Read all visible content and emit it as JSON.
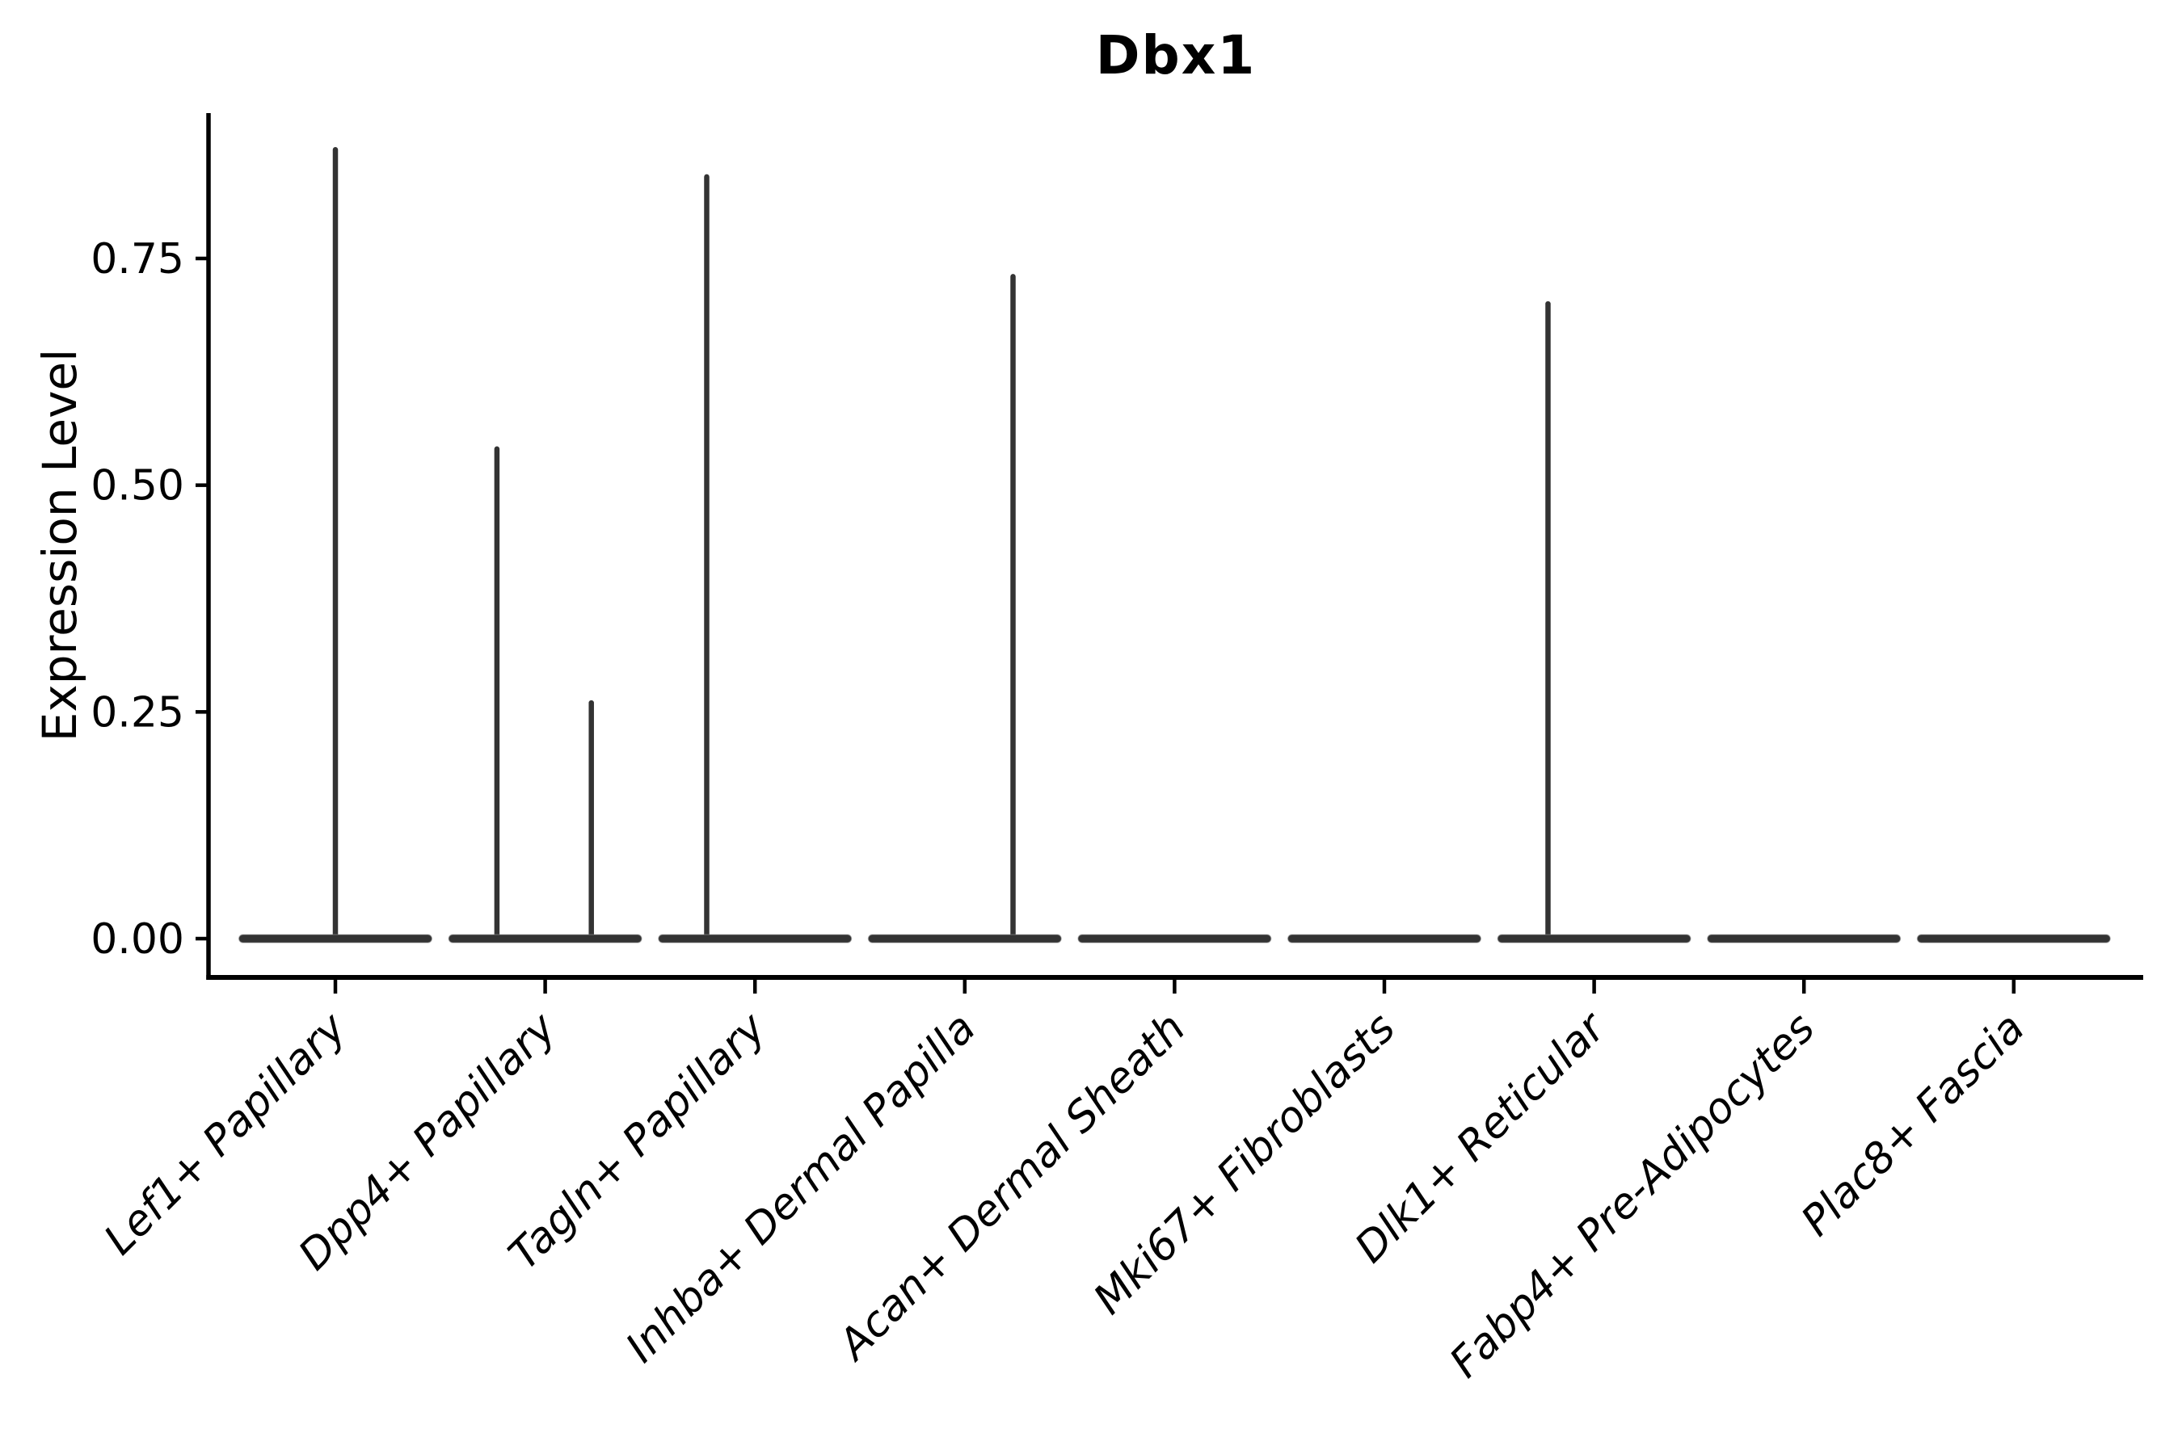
{
  "title": "Dbx1",
  "y_axis": {
    "label": "Expression Level",
    "tick_labels": [
      "0.00",
      "0.25",
      "0.50",
      "0.75"
    ],
    "tick_values": [
      0.0,
      0.25,
      0.5,
      0.75
    ]
  },
  "x_axis": {
    "label": "",
    "tick_labels": [
      "Lef1+ Papillary",
      "Dpp4+ Papillary",
      "Tagln+ Papillary",
      "Inhba+ Dermal Papilla",
      "Acan+ Dermal Sheath",
      "Mki67+ Fibroblasts",
      "Dlk1+ Reticular",
      "Fabp4+ Pre-Adipocytes",
      "Plac8+ Fascia"
    ]
  },
  "colors": {
    "background": "#ffffff",
    "axis": "#000000",
    "text": "#000000",
    "violin": "#333333"
  },
  "chart_data": {
    "type": "violin",
    "title": "Dbx1",
    "xlabel": "",
    "ylabel": "Expression Level",
    "ylim": [
      -0.04,
      0.91
    ],
    "yticks": [
      0.0,
      0.25,
      0.5,
      0.75
    ],
    "ytick_labels": [
      "0.00",
      "0.25",
      "0.50",
      "0.75"
    ],
    "grid": false,
    "legend": "none",
    "body_width": 0.92,
    "categories": [
      "Lef1+ Papillary",
      "Dpp4+ Papillary",
      "Tagln+ Papillary",
      "Inhba+ Dermal Papilla",
      "Acan+ Dermal Sheath",
      "Mki67+ Fibroblasts",
      "Dlk1+ Reticular",
      "Fabp4+ Pre-Adipocytes",
      "Plac8+ Fascia"
    ],
    "violins": [
      {
        "category": "Lef1+ Papillary",
        "baseline": 0.0,
        "spikes": [
          {
            "x_offset": 0.0,
            "max_expression": 0.87
          }
        ]
      },
      {
        "category": "Dpp4+ Papillary",
        "baseline": 0.0,
        "spikes": [
          {
            "x_offset": -0.23,
            "max_expression": 0.54
          },
          {
            "x_offset": 0.22,
            "max_expression": 0.26
          }
        ]
      },
      {
        "category": "Tagln+ Papillary",
        "baseline": 0.0,
        "spikes": [
          {
            "x_offset": -0.23,
            "max_expression": 0.84
          }
        ]
      },
      {
        "category": "Inhba+ Dermal Papilla",
        "baseline": 0.0,
        "spikes": [
          {
            "x_offset": 0.23,
            "max_expression": 0.73
          }
        ]
      },
      {
        "category": "Acan+ Dermal Sheath",
        "baseline": 0.0,
        "spikes": []
      },
      {
        "category": "Mki67+ Fibroblasts",
        "baseline": 0.0,
        "spikes": []
      },
      {
        "category": "Dlk1+ Reticular",
        "baseline": 0.0,
        "spikes": [
          {
            "x_offset": -0.22,
            "max_expression": 0.7
          }
        ]
      },
      {
        "category": "Fabp4+ Pre-Adipocytes",
        "baseline": 0.0,
        "spikes": []
      },
      {
        "category": "Plac8+ Fascia",
        "baseline": 0.0,
        "spikes": []
      }
    ]
  }
}
